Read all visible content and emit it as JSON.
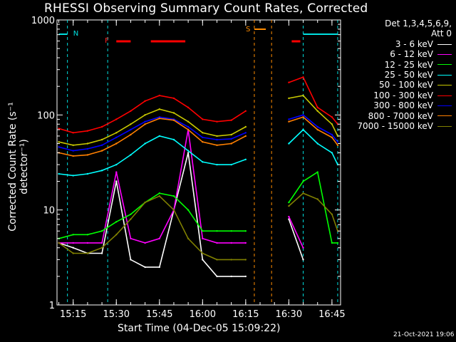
{
  "chart_data": {
    "type": "line",
    "title": "RHESSI Observing Summary Count Rates, Corrected",
    "xlabel": "Start Time (04-Dec-05 15:09:22)",
    "ylabel": "Corrected Count Rate (s⁻¹ detector⁻¹)",
    "yscale": "log",
    "ylim": [
      1,
      1000
    ],
    "ytick_labels": [
      "1",
      "10",
      "100",
      "1000"
    ],
    "xlim": [
      "15:09:22",
      "16:48:00"
    ],
    "xtick_labels": [
      "15:15",
      "15:30",
      "15:45",
      "16:00",
      "16:15",
      "16:30",
      "16:45"
    ],
    "legend": {
      "placement": "right",
      "header": [
        "Det 1,3,4,5,6,9,",
        "Att 0"
      ]
    },
    "annotations": {
      "flags": [
        "N",
        "F",
        "S"
      ],
      "night_lines": [
        "15:13",
        "15:27",
        "16:35",
        "16:47"
      ],
      "saa_lines": [
        "16:18",
        "16:24"
      ]
    },
    "x": [
      "15:10",
      "15:15",
      "15:20",
      "15:25",
      "15:30",
      "15:35",
      "15:40",
      "15:45",
      "15:50",
      "15:55",
      "16:00",
      "16:05",
      "16:10",
      "16:15",
      "16:18",
      "16:20",
      "16:25",
      "16:30",
      "16:35",
      "16:40",
      "16:45",
      "16:47"
    ],
    "series": [
      {
        "name": "3 - 6 keV",
        "color": "#ffffff",
        "values": [
          4.5,
          4.0,
          3.5,
          3.5,
          20,
          3.0,
          2.5,
          2.5,
          10,
          40,
          3.0,
          2.0,
          2.0,
          2.0,
          null,
          null,
          null,
          8.0,
          3.0,
          null,
          null,
          null
        ]
      },
      {
        "name": "6 - 12 keV",
        "color": "#ff00ff",
        "values": [
          4.5,
          4.5,
          4.5,
          4.5,
          25,
          5.0,
          4.5,
          5.0,
          10,
          70,
          5.0,
          4.5,
          4.5,
          4.5,
          null,
          null,
          null,
          8.5,
          4.0,
          null,
          null,
          null
        ]
      },
      {
        "name": "12 - 25 keV",
        "color": "#00ff00",
        "values": [
          5.0,
          5.5,
          5.5,
          6.0,
          7.5,
          9.0,
          12.0,
          15.0,
          14.0,
          10.0,
          6.0,
          6.0,
          6.0,
          6.0,
          null,
          null,
          null,
          12.0,
          20.0,
          25.0,
          4.5,
          4.5
        ]
      },
      {
        "name": "25 - 50 keV",
        "color": "#00ffff",
        "values": [
          24,
          23,
          24,
          26,
          30,
          38,
          50,
          60,
          55,
          42,
          32,
          30,
          30,
          34,
          null,
          null,
          null,
          50,
          70,
          50,
          40,
          30
        ]
      },
      {
        "name": "50 - 100 keV",
        "color": "#c8c800",
        "values": [
          52,
          48,
          50,
          55,
          65,
          80,
          100,
          115,
          105,
          85,
          65,
          60,
          62,
          75,
          null,
          null,
          null,
          150,
          160,
          110,
          80,
          60
        ]
      },
      {
        "name": "100 - 300 keV",
        "color": "#ff0000",
        "values": [
          72,
          65,
          68,
          75,
          90,
          110,
          140,
          160,
          150,
          120,
          90,
          85,
          88,
          110,
          null,
          null,
          null,
          220,
          250,
          120,
          95,
          80
        ]
      },
      {
        "name": "300 - 800 keV",
        "color": "#0000ff",
        "values": [
          46,
          42,
          44,
          48,
          58,
          70,
          85,
          95,
          90,
          75,
          58,
          55,
          56,
          65,
          null,
          null,
          null,
          90,
          100,
          75,
          62,
          52
        ]
      },
      {
        "name": "800 - 7000 keV",
        "color": "#ff7f00",
        "values": [
          40,
          37,
          38,
          42,
          50,
          62,
          80,
          92,
          88,
          70,
          52,
          48,
          50,
          60,
          null,
          null,
          null,
          85,
          95,
          70,
          58,
          48
        ]
      },
      {
        "name": "7000 - 15000 keV",
        "color": "#808000",
        "values": [
          4.5,
          3.5,
          3.5,
          4.0,
          5.5,
          8.0,
          12.0,
          14.0,
          10.0,
          5.0,
          3.5,
          3.0,
          3.0,
          3.0,
          null,
          null,
          null,
          11.0,
          15.0,
          13.0,
          9.0,
          6.0
        ]
      }
    ]
  },
  "footer": "21-Oct-2021 19:06"
}
